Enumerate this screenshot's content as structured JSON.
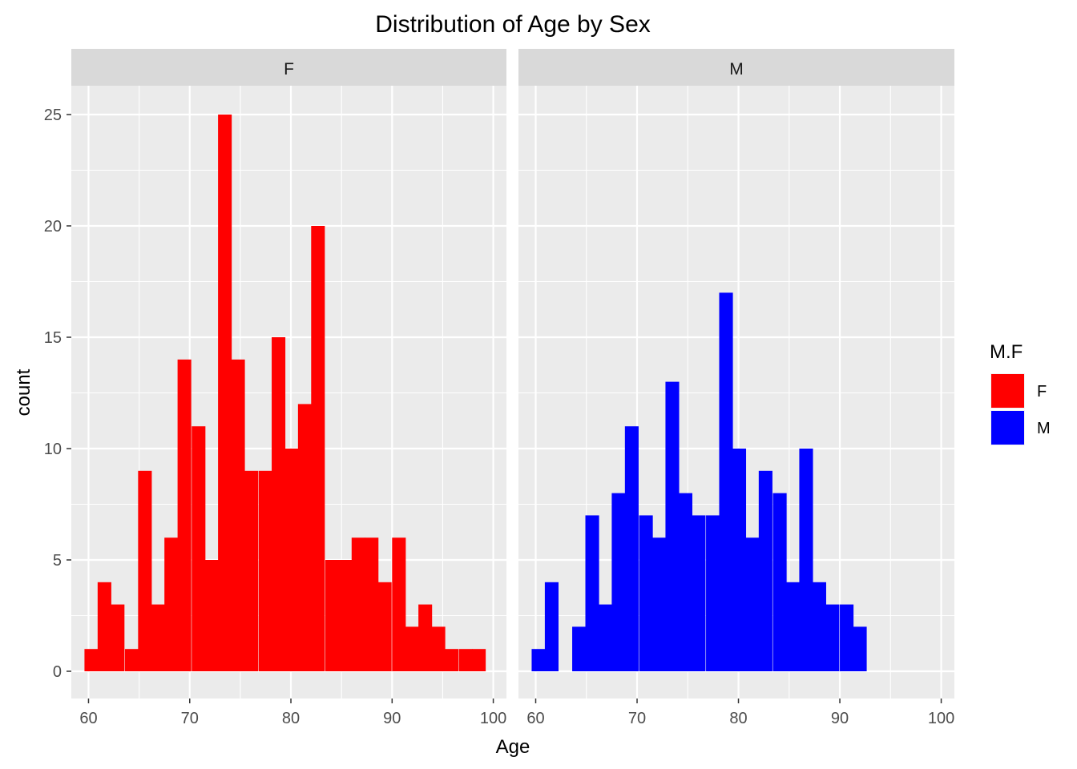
{
  "chart_data": {
    "type": "bar",
    "title": "Distribution of Age by Sex",
    "xlabel": "Age",
    "ylabel": "count",
    "xlim": [
      58.3,
      101.3
    ],
    "ylim": [
      0,
      26.5
    ],
    "x_ticks": [
      60,
      70,
      80,
      90,
      100
    ],
    "y_ticks": [
      0,
      5,
      10,
      15,
      20,
      25
    ],
    "grid": true,
    "bin_width": 1.32,
    "legend": {
      "title": "M.F",
      "position": "right",
      "entries": [
        {
          "label": "F",
          "color": "#ff0000"
        },
        {
          "label": "M",
          "color": "#0000ff"
        }
      ]
    },
    "panels": [
      {
        "facet": "F",
        "color": "#ff0000",
        "bin_starts": [
          59.6,
          60.9,
          62.2,
          63.6,
          64.9,
          66.2,
          67.5,
          68.8,
          70.2,
          71.5,
          72.8,
          74.1,
          75.4,
          76.8,
          78.1,
          79.4,
          80.7,
          82.0,
          83.4,
          84.7,
          86.0,
          87.3,
          88.6,
          90.0,
          91.3,
          92.6,
          93.9,
          95.2,
          96.6,
          97.9
        ],
        "counts": [
          1,
          4,
          3,
          1,
          9,
          3,
          6,
          14,
          11,
          5,
          25,
          14,
          9,
          9,
          15,
          10,
          12,
          20,
          5,
          5,
          6,
          6,
          4,
          6,
          2,
          3,
          2,
          1,
          1,
          1
        ]
      },
      {
        "facet": "M",
        "color": "#0000ff",
        "bin_starts": [
          59.6,
          60.9,
          62.2,
          63.6,
          64.9,
          66.2,
          67.5,
          68.8,
          70.2,
          71.5,
          72.8,
          74.1,
          75.4,
          76.8,
          78.1,
          79.4,
          80.7,
          82.0,
          83.4,
          84.7,
          86.0,
          87.3,
          88.6,
          90.0,
          91.3
        ],
        "counts": [
          1,
          4,
          0,
          2,
          7,
          3,
          8,
          11,
          7,
          6,
          13,
          8,
          7,
          7,
          17,
          10,
          6,
          9,
          8,
          4,
          10,
          4,
          3,
          3,
          2
        ]
      }
    ]
  }
}
